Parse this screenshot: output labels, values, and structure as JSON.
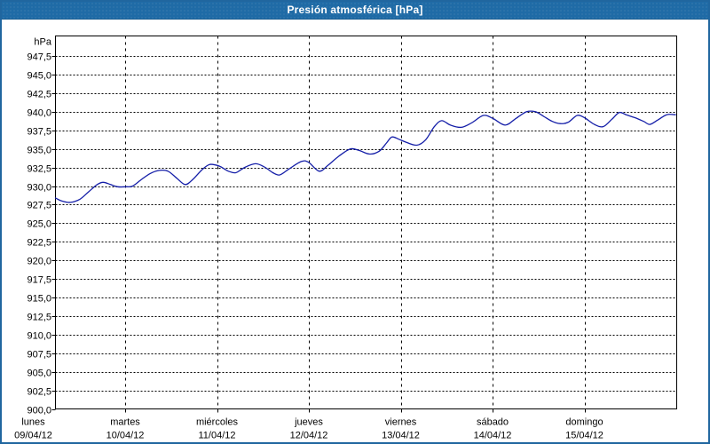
{
  "window": {
    "title": "Presión atmosférica [hPa]"
  },
  "colors": {
    "titlebar_bg": "#1f6ba6",
    "titlebar_text": "#ffffff",
    "window_border": "#20669f",
    "window_bg": "#ffffff",
    "line": "#141ea8",
    "grid": "#000000",
    "text": "#000000"
  },
  "chart_data": {
    "type": "line",
    "title": "Presión atmosférica [hPa]",
    "ylabel": "hPa",
    "grid": "dashed",
    "legend": "none",
    "y_axis": {
      "min": 900.0,
      "max": 947.5,
      "tick_step": 2.5,
      "decimal_separator": "comma",
      "tick_labels": [
        "947,5",
        "945,0",
        "942,5",
        "940,0",
        "937,5",
        "935,0",
        "932,5",
        "930,0",
        "927,5",
        "925,0",
        "922,5",
        "920,0",
        "917,5",
        "915,0",
        "912,5",
        "910,0",
        "907,5",
        "905,0",
        "902,5",
        "900,0"
      ]
    },
    "x_axis": {
      "unit": "hours since Monday 00:00",
      "range_hours": [
        0,
        168
      ],
      "gridline_hours": [
        24,
        48,
        72,
        96,
        120,
        144
      ],
      "label_hours": [
        0,
        24,
        48,
        72,
        96,
        120,
        144
      ],
      "day_labels": [
        {
          "weekday": "lunes",
          "date": "09/04/12"
        },
        {
          "weekday": "martes",
          "date": "10/04/12"
        },
        {
          "weekday": "miércoles",
          "date": "11/04/12"
        },
        {
          "weekday": "jueves",
          "date": "12/04/12"
        },
        {
          "weekday": "viernes",
          "date": "13/04/12"
        },
        {
          "weekday": "sábado",
          "date": "14/04/12"
        },
        {
          "weekday": "domingo",
          "date": "15/04/12"
        }
      ]
    },
    "series": [
      {
        "name": "Presión atmosférica",
        "color": "#141ea8",
        "hours": [
          5.8,
          7.4,
          9.7,
          12.1,
          14.4,
          16.7,
          18.3,
          20.2,
          22.0,
          24.3,
          26.0,
          28.3,
          30.6,
          32.9,
          35.2,
          37.6,
          39.7,
          41.7,
          44.1,
          46.1,
          48.5,
          51.0,
          52.9,
          55.2,
          58.0,
          60.3,
          62.6,
          64.4,
          66.8,
          70.0,
          71.9,
          74.7,
          77.0,
          79.8,
          82.8,
          85.1,
          87.9,
          90.4,
          92.3,
          93.7,
          95.5,
          97.4,
          100.2,
          102.5,
          104.8,
          106.7,
          109.0,
          111.8,
          114.5,
          117.6,
          120.1,
          123.3,
          126.1,
          128.9,
          131.2,
          133.3,
          135.6,
          137.7,
          139.8,
          142.1,
          144.0,
          146.6,
          148.9,
          151.2,
          153.1,
          154.9,
          157.2,
          159.5,
          161.1,
          163.2,
          165.5,
          167.8
        ],
        "values_hpa": [
          928.4,
          928.0,
          927.8,
          928.2,
          929.2,
          930.2,
          930.5,
          930.2,
          929.9,
          929.9,
          930.0,
          930.9,
          931.7,
          932.1,
          932.0,
          931.0,
          930.2,
          930.9,
          932.2,
          932.9,
          932.7,
          932.0,
          931.8,
          932.5,
          933.0,
          932.6,
          931.8,
          931.5,
          932.3,
          933.3,
          933.2,
          932.0,
          932.8,
          934.0,
          935.0,
          934.8,
          934.3,
          934.7,
          935.8,
          936.6,
          936.3,
          935.9,
          935.5,
          936.2,
          938.0,
          938.8,
          938.2,
          937.9,
          938.5,
          939.5,
          939.1,
          938.2,
          939.1,
          940.0,
          940.0,
          939.4,
          938.7,
          938.4,
          938.6,
          939.5,
          939.2,
          938.3,
          938.0,
          939.0,
          939.9,
          939.6,
          939.2,
          938.7,
          938.3,
          938.9,
          939.6,
          939.6
        ]
      }
    ]
  }
}
